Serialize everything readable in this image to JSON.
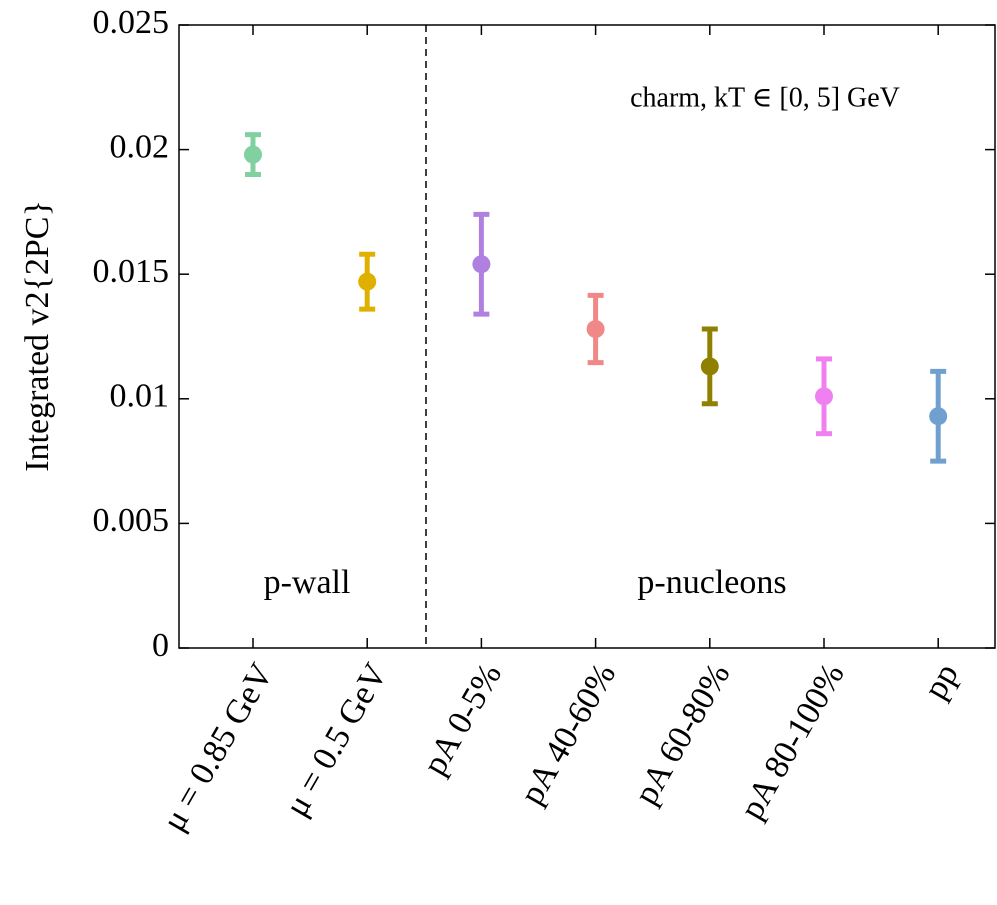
{
  "chart_data": {
    "type": "errorbar",
    "ylabel": "Integrated v2{2PC}",
    "annotation": "charm, kT ∈ [0, 5] GeV",
    "regions": [
      "p-wall",
      "p-nucleons"
    ],
    "categories": [
      "μ = 0.85 GeV",
      "μ = 0.5 GeV",
      "pA 0-5%",
      "pA 40-60%",
      "pA 60-80%",
      "pA 80-100%",
      "pp"
    ],
    "values": [
      0.0198,
      0.0147,
      0.0154,
      0.0128,
      0.0113,
      0.0101,
      0.0093
    ],
    "errors": [
      0.0008,
      0.0011,
      0.002,
      0.00135,
      0.0015,
      0.0015,
      0.0018
    ],
    "colors": [
      "#80d0a0",
      "#e0b000",
      "#b080e0",
      "#f08888",
      "#908000",
      "#f080f0",
      "#70a0d0"
    ],
    "ylim": [
      0,
      0.025
    ],
    "yticks": [
      0,
      0.005,
      0.01,
      0.015,
      0.02,
      0.025
    ]
  }
}
